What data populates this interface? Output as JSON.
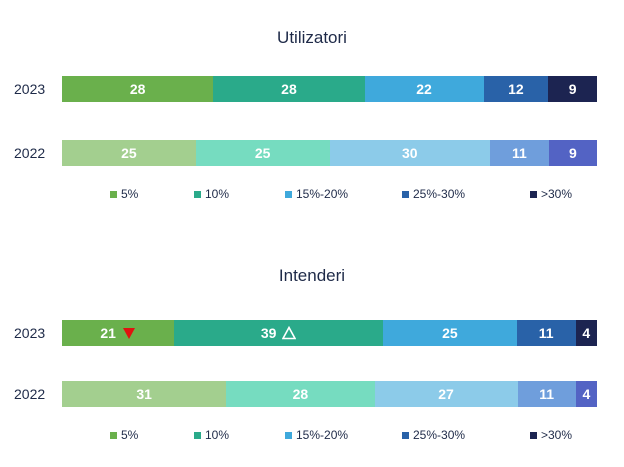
{
  "colors": {
    "2023": [
      "#6ab04c",
      "#2aaa8a",
      "#3fa9dc",
      "#2962a8",
      "#1c2451"
    ],
    "2022": [
      "#a3cf8f",
      "#76dcc0",
      "#8ccbe9",
      "#6f9edc",
      "#5363c4"
    ]
  },
  "legend_labels": [
    "5%",
    "10%",
    "15%-20%",
    "25%-30%",
    ">30%"
  ],
  "chart_data": [
    {
      "type": "bar",
      "orientation": "horizontal-stacked-100",
      "title": "Utilizatori",
      "categories": [
        "2023",
        "2022"
      ],
      "series": [
        {
          "name": "5%",
          "values": [
            28,
            25
          ]
        },
        {
          "name": "10%",
          "values": [
            28,
            25
          ]
        },
        {
          "name": "15%-20%",
          "values": [
            22,
            30
          ]
        },
        {
          "name": "25%-30%",
          "values": [
            12,
            11
          ]
        },
        {
          "name": ">30%",
          "values": [
            9,
            9
          ]
        }
      ],
      "markers": [],
      "legend": "bottom"
    },
    {
      "type": "bar",
      "orientation": "horizontal-stacked-100",
      "title": "Intenderi",
      "categories": [
        "2023",
        "2022"
      ],
      "series": [
        {
          "name": "5%",
          "values": [
            21,
            31
          ]
        },
        {
          "name": "10%",
          "values": [
            39,
            28
          ]
        },
        {
          "name": "15%-20%",
          "values": [
            25,
            27
          ]
        },
        {
          "name": "25%-30%",
          "values": [
            11,
            11
          ]
        },
        {
          "name": ">30%",
          "values": [
            4,
            4
          ]
        }
      ],
      "markers": [
        {
          "category": "2023",
          "series": "5%",
          "icon": "down-triangle-red-icon"
        },
        {
          "category": "2023",
          "series": "10%",
          "icon": "up-triangle-outline-icon"
        }
      ],
      "legend": "bottom"
    }
  ]
}
